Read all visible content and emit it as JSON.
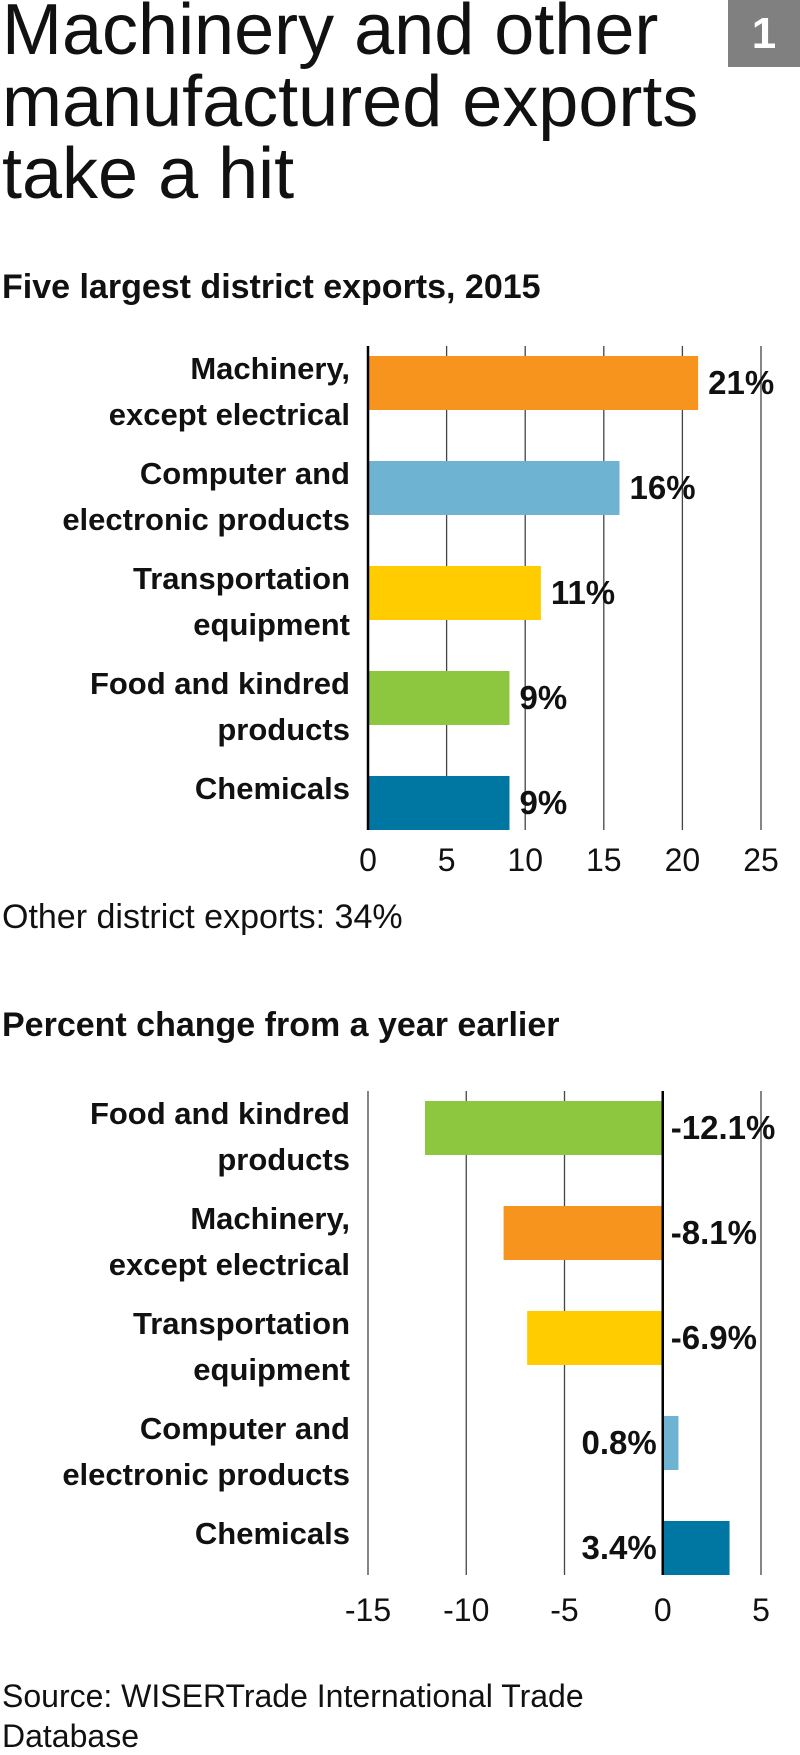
{
  "title": "Machinery and other manufactured exports take a hit",
  "badge": "1",
  "source": "Source: WISERTrade International Trade Database",
  "chart_data": [
    {
      "type": "bar",
      "orientation": "horizontal",
      "title": "Five largest district exports, 2015",
      "categories": [
        "Machinery,\nexcept electrical",
        "Computer and\nelectronic products",
        "Transportation\nequipment",
        "Food and kindred\nproducts",
        "Chemicals"
      ],
      "values": [
        21,
        16,
        11,
        9,
        9
      ],
      "value_labels": [
        "21%",
        "16%",
        "11%",
        "9%",
        "9%"
      ],
      "colors": [
        "#f7941d",
        "#6fb3d3",
        "#ffcc00",
        "#8dc63f",
        "#0076a3"
      ],
      "xlim": [
        0,
        25
      ],
      "xticks": [
        0,
        5,
        10,
        15,
        20,
        25
      ],
      "grid": true,
      "note": "Other district exports: 34%"
    },
    {
      "type": "bar",
      "orientation": "horizontal",
      "title": "Percent change from a year earlier",
      "categories": [
        "Food and kindred\nproducts",
        "Machinery,\nexcept electrical",
        "Transportation\nequipment",
        "Computer and\nelectronic products",
        "Chemicals"
      ],
      "values": [
        -12.1,
        -8.1,
        -6.9,
        0.8,
        3.4
      ],
      "value_labels": [
        "-12.1%",
        "-8.1%",
        "-6.9%",
        "0.8%",
        "3.4%"
      ],
      "colors": [
        "#8dc63f",
        "#f7941d",
        "#ffcc00",
        "#6fb3d3",
        "#0076a3"
      ],
      "xlim": [
        -15,
        5
      ],
      "xticks": [
        -15,
        -10,
        -5,
        0,
        5
      ],
      "grid": true
    }
  ]
}
